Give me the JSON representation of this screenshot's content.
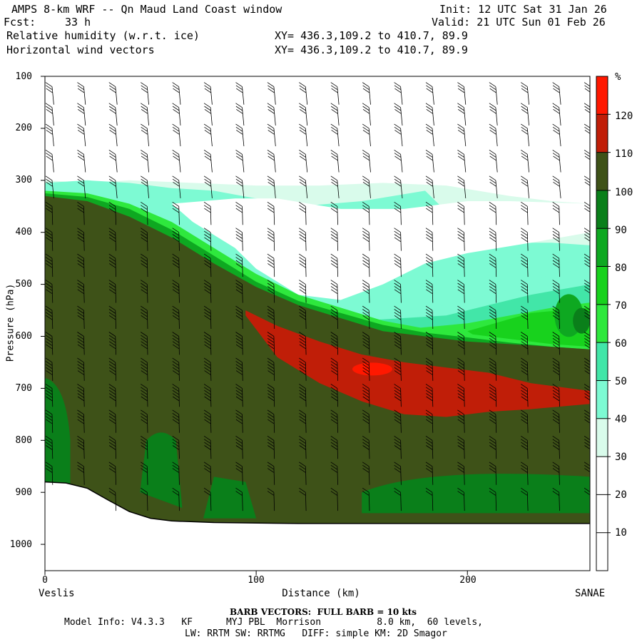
{
  "header": {
    "model": "AMPS 8-km WRF -- Qn Maud Land Coast window",
    "init": "Init: 12 UTC Sat 31 Jan 26",
    "fcst_label": "Fcst:",
    "fcst_value": "33 h",
    "valid": "Valid: 21 UTC Sun 01 Feb 26",
    "field1": "Relative humidity (w.r.t. ice)",
    "field2": "Horizontal wind vectors",
    "xy1": "XY= 436.3,109.2 to 410.7, 89.9",
    "xy2": "XY= 436.3,109.2 to 410.7, 89.9"
  },
  "colors": {
    "white": "#ffffff",
    "l30": "#d9fbeb",
    "l40": "#7dfad3",
    "l50": "#42e6a8",
    "l60": "#2ee83d",
    "l70": "#18d21d",
    "l80": "#0ea821",
    "l90": "#0a7f1a",
    "l100": "#3e5218",
    "l110": "#c01e08",
    "l120": "#ff1800",
    "terrain": "#ffffff"
  },
  "chart_data": {
    "type": "heatmap",
    "title": "Relative humidity (w.r.t. ice)",
    "overlay": "Horizontal wind vectors",
    "xlabel": "Distance (km)",
    "ylabel": "Pressure (hPa)",
    "xlim": [
      0,
      258
    ],
    "ylim": [
      1050,
      100
    ],
    "x_ticks": [
      0,
      100,
      200
    ],
    "y_ticks": [
      100,
      200,
      300,
      400,
      500,
      600,
      700,
      800,
      900,
      1000
    ],
    "x_start_label": "Veslis",
    "x_end_label": "SANAE",
    "colorbar_unit": "%",
    "colorbar_levels": [
      10,
      20,
      30,
      40,
      50,
      60,
      70,
      80,
      90,
      100,
      110,
      120
    ],
    "colorbar_colors": [
      "#ffffff",
      "#ffffff",
      "#ffffff",
      "#d9fbeb",
      "#7dfad3",
      "#42e6a8",
      "#2ee83d",
      "#18d21d",
      "#0ea821",
      "#0a7f1a",
      "#3e5218",
      "#c01e08",
      "#ff1800"
    ],
    "surface_pressure": {
      "x": [
        0,
        10,
        20,
        30,
        40,
        50,
        60,
        80,
        120,
        180,
        258
      ],
      "p": [
        880,
        882,
        892,
        915,
        937,
        950,
        955,
        958,
        960,
        960,
        960
      ]
    },
    "regions": [
      {
        "rh": 100,
        "x": [
          0,
          20,
          40,
          60,
          80,
          100,
          120,
          140,
          160,
          180,
          200,
          220,
          240,
          258
        ],
        "p_top": [
          330,
          340,
          370,
          410,
          460,
          505,
          540,
          565,
          590,
          600,
          610,
          615,
          620,
          625
        ]
      },
      {
        "rh": 110,
        "x": [
          95,
          110,
          130,
          150,
          170,
          190,
          210,
          230,
          258
        ],
        "p_top": [
          550,
          580,
          610,
          635,
          650,
          660,
          670,
          690,
          705
        ],
        "p_bottom": [
          560,
          640,
          690,
          725,
          750,
          755,
          745,
          740,
          730
        ]
      },
      {
        "rh": 120,
        "x": [
          145,
          155,
          165
        ],
        "p_center": 660
      }
    ],
    "wind_barbs": {
      "unit": "kts",
      "full_barb_kts": 10,
      "x_km": [
        0,
        15,
        30,
        45,
        60,
        75,
        90,
        105,
        120,
        135,
        150,
        165,
        180,
        195,
        210,
        225,
        240,
        255
      ],
      "p_levels": [
        120,
        160,
        200,
        250,
        300,
        350,
        400,
        450,
        500,
        550,
        600,
        650,
        700,
        750,
        800,
        850,
        900
      ],
      "speed_kts_by_level": [
        25,
        30,
        30,
        25,
        25,
        30,
        35,
        35,
        40,
        40,
        45,
        45,
        45,
        40,
        35,
        30,
        20
      ]
    }
  },
  "footer": {
    "barb_note": "BARB VECTORS:  FULL BARB = 10 kts",
    "model_info": "Model Info: V4.3.3   KF      MYJ PBL  Morrison          8.0 km,  60 levels,",
    "physics": "LW: RRTM SW: RRTMG   DIFF: simple KM: 2D Smagor"
  }
}
